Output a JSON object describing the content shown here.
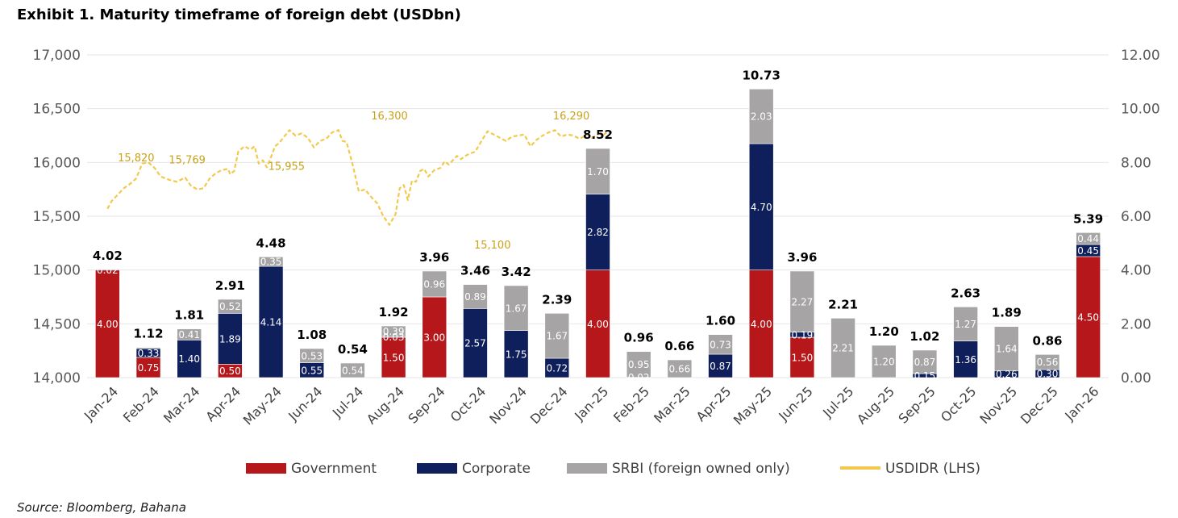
{
  "title": "Exhibit 1. Maturity timeframe of foreign debt (USDbn)",
  "source": "Source: Bloomberg, Bahana",
  "colors": {
    "government": "#b5171a",
    "corporate": "#0f1f5c",
    "srbi": "#a6a4a4",
    "usdidr": "#f2c94c",
    "grid": "#e6e6e6"
  },
  "chart_data": {
    "type": "bar",
    "stacked": true,
    "categories": [
      "Jan-24",
      "Feb-24",
      "Mar-24",
      "Apr-24",
      "May-24",
      "Jun-24",
      "Jul-24",
      "Aug-24",
      "Sep-24",
      "Oct-24",
      "Nov-24",
      "Dec-24",
      "Jan-25",
      "Feb-25",
      "Mar-25",
      "Apr-25",
      "May-25",
      "Jun-25",
      "Jul-25",
      "Aug-25",
      "Sep-25",
      "Oct-25",
      "Nov-25",
      "Dec-25",
      "Jan-26"
    ],
    "series": [
      {
        "name": "Government",
        "key": "government",
        "values": [
          4.0,
          0.75,
          0,
          0.5,
          0,
          0,
          0,
          1.5,
          3.0,
          0,
          0,
          0,
          4.0,
          0,
          0,
          0,
          4.0,
          1.5,
          0,
          0,
          0,
          0,
          0,
          0,
          4.5
        ],
        "labels": [
          "4.00",
          "0.75",
          "",
          "0.50",
          "",
          "",
          "",
          "1.50",
          "3.00",
          "",
          "",
          "",
          "4.00",
          "",
          "",
          "",
          "4.00",
          "1.50",
          "",
          "",
          "",
          "",
          "",
          "",
          "4.50"
        ]
      },
      {
        "name": "Corporate",
        "key": "corporate",
        "values": [
          0.02,
          0.33,
          1.4,
          1.89,
          4.14,
          0.55,
          0,
          0.03,
          0,
          2.57,
          1.75,
          0.72,
          2.82,
          0.02,
          0,
          0.87,
          4.7,
          0.19,
          0,
          0,
          0.15,
          1.36,
          0.26,
          0.3,
          0.45
        ],
        "labels": [
          "0.02",
          "0.33",
          "1.40",
          "1.89",
          "4.14",
          "0.55",
          "",
          "0.03",
          "",
          "2.57",
          "1.75",
          "0.72",
          "2.82",
          "0.02",
          "",
          "0.87",
          "4.70",
          "0.19",
          "",
          "",
          "0.15",
          "1.36",
          "0.26",
          "0.30",
          "0.45"
        ]
      },
      {
        "name": "SRBI (foreign owned only)",
        "key": "srbi",
        "values": [
          0,
          0.04,
          0.41,
          0.52,
          0.35,
          0.53,
          0.54,
          0.39,
          0.96,
          0.89,
          1.67,
          1.67,
          1.7,
          0.95,
          0.66,
          0.73,
          2.03,
          2.27,
          2.21,
          1.2,
          0.87,
          1.27,
          1.64,
          0.56,
          0.44
        ],
        "labels": [
          "",
          "",
          "0.41",
          "0.52",
          "0.35",
          "0.53",
          "0.54",
          "0.39",
          "0.96",
          "0.89",
          "1.67",
          "1.67",
          "1.70",
          "0.95",
          "0.66",
          "0.73",
          "2.03",
          "2.27",
          "2.21",
          "1.20",
          "0.87",
          "1.27",
          "1.64",
          "0.56",
          "0.44"
        ]
      }
    ],
    "totals": [
      "4.02",
      "1.12",
      "1.81",
      "2.91",
      "4.48",
      "1.08",
      "0.54",
      "1.92",
      "3.96",
      "3.46",
      "3.42",
      "2.39",
      "8.52",
      "0.96",
      "0.66",
      "1.60",
      "10.73",
      "3.96",
      "2.21",
      "1.20",
      "1.02",
      "2.63",
      "1.89",
      "0.86",
      "5.39"
    ],
    "line_series": {
      "name": "USDIDR (LHS)",
      "x": [
        0,
        0.1,
        0.25,
        0.4,
        0.55,
        0.7,
        0.85,
        1.0,
        1.15,
        1.3,
        1.5,
        1.7,
        1.9,
        2.05,
        2.2,
        2.35,
        2.5,
        2.65,
        2.8,
        2.95,
        3.0,
        3.1,
        3.2,
        3.35,
        3.5,
        3.6,
        3.7,
        3.8,
        3.9,
        4.0,
        4.1,
        4.2,
        4.3,
        4.45,
        4.6,
        4.75,
        4.9,
        5.05,
        5.2,
        5.35,
        5.5,
        5.65,
        5.75,
        5.85,
        6.0,
        6.15,
        6.3,
        6.45,
        6.6,
        6.75,
        6.9,
        7.05,
        7.15,
        7.25,
        7.35,
        7.45,
        7.55,
        7.65,
        7.75,
        7.85,
        8.0,
        8.15,
        8.25,
        8.35,
        8.45,
        8.55,
        8.65,
        8.75,
        8.85,
        9.0,
        9.15,
        9.3,
        9.45,
        9.6,
        9.75,
        9.9,
        10.05,
        10.2,
        10.35,
        10.5,
        10.65,
        10.8,
        10.95,
        11.1,
        11.25,
        11.4,
        11.55,
        11.65,
        11.75,
        11.85,
        11.95,
        12.05,
        12.15,
        12.25
      ],
      "values": [
        15570,
        15640,
        15700,
        15760,
        15800,
        15850,
        15990,
        16000,
        15950,
        15870,
        15840,
        15820,
        15860,
        15780,
        15750,
        15760,
        15850,
        15900,
        15930,
        15940,
        15890,
        15920,
        16100,
        16150,
        16120,
        16150,
        15990,
        16020,
        15955,
        16050,
        16150,
        16180,
        16230,
        16300,
        16250,
        16270,
        16230,
        16140,
        16200,
        16220,
        16280,
        16300,
        16200,
        16190,
        15980,
        15730,
        15750,
        15680,
        15620,
        15500,
        15420,
        15520,
        15760,
        15790,
        15650,
        15830,
        15820,
        15920,
        15940,
        15870,
        15930,
        15950,
        16010,
        15980,
        16020,
        16060,
        16030,
        16060,
        16080,
        16100,
        16200,
        16290,
        16260,
        16230,
        16200,
        16240,
        16250,
        16260,
        16150,
        16210,
        16250,
        16280,
        16300,
        16240,
        16260,
        16250,
        16220,
        16240,
        16260,
        16230,
        16250,
        16270,
        16260,
        16290
      ]
    },
    "line_labels": [
      {
        "x": 0.7,
        "y": 16010,
        "text": "15,820"
      },
      {
        "x": 1.95,
        "y": 15990,
        "text": "15,769"
      },
      {
        "x": 4.38,
        "y": 15930,
        "text": "15,955"
      },
      {
        "x": 6.9,
        "y": 16400,
        "text": "16,300"
      },
      {
        "x": 9.42,
        "y": 15200,
        "text": "15,100"
      },
      {
        "x": 11.35,
        "y": 16400,
        "text": "16,290"
      }
    ],
    "y_left": {
      "min": 14000,
      "max": 17000,
      "ticks": [
        "14,000",
        "14,500",
        "15,000",
        "15,500",
        "16,000",
        "16,500",
        "17,000"
      ]
    },
    "y_right": {
      "min": 0,
      "max": 12,
      "ticks": [
        "0.00",
        "2.00",
        "4.00",
        "6.00",
        "8.00",
        "10.00",
        "12.00"
      ]
    },
    "legend": [
      "Government",
      "Corporate",
      "SRBI (foreign owned only)",
      "USDIDR (LHS)"
    ],
    "legend_position": "bottom"
  }
}
